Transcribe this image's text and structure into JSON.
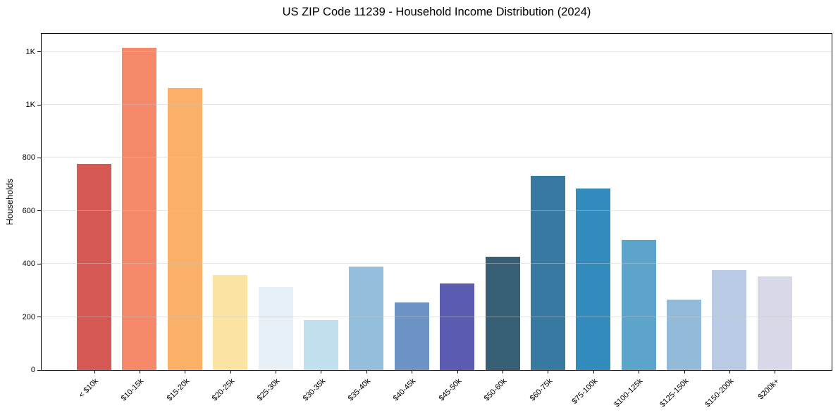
{
  "page": {
    "background": "#ffffff"
  },
  "chart_data": {
    "type": "bar",
    "title": "US ZIP Code 11239 - Household Income Distribution (2024)",
    "xlabel": "",
    "ylabel": "Households",
    "categories": [
      "< $10k",
      "$10-15k",
      "$15-20k",
      "$20-25k",
      "$25-30k",
      "$30-35k",
      "$35-40k",
      "$40-45k",
      "$45-50k",
      "$50-60k",
      "$60-75k",
      "$75-100k",
      "$100-125k",
      "$125-150k",
      "$150-200k",
      "$200k+"
    ],
    "values": [
      776,
      1215,
      1063,
      359,
      312,
      188,
      389,
      256,
      327,
      426,
      733,
      685,
      491,
      266,
      378,
      354
    ],
    "bar_colors": [
      "#d65853",
      "#f48869",
      "#f9b169",
      "#fbe3a3",
      "#e6f0f6",
      "#c1e0ee",
      "#93bfdd",
      "#6b93c4",
      "#5b5caf",
      "#365e75",
      "#3879a2",
      "#338abc",
      "#5ca4ca",
      "#94bada",
      "#b9cbe4",
      "#d8d9e8"
    ],
    "yticks": [
      {
        "value": 0,
        "label": "0"
      },
      {
        "value": 200,
        "label": "200"
      },
      {
        "value": 400,
        "label": "400"
      },
      {
        "value": 600,
        "label": "600"
      },
      {
        "value": 800,
        "label": "800"
      },
      {
        "value": 1000,
        "label": "1K"
      },
      {
        "value": 1200,
        "label": "1K"
      }
    ],
    "ylim": [
      0,
      1268
    ],
    "grid": "horizontal",
    "gridline_color": "#e9e9e9",
    "axis_color": "#000000",
    "legend": "none"
  }
}
